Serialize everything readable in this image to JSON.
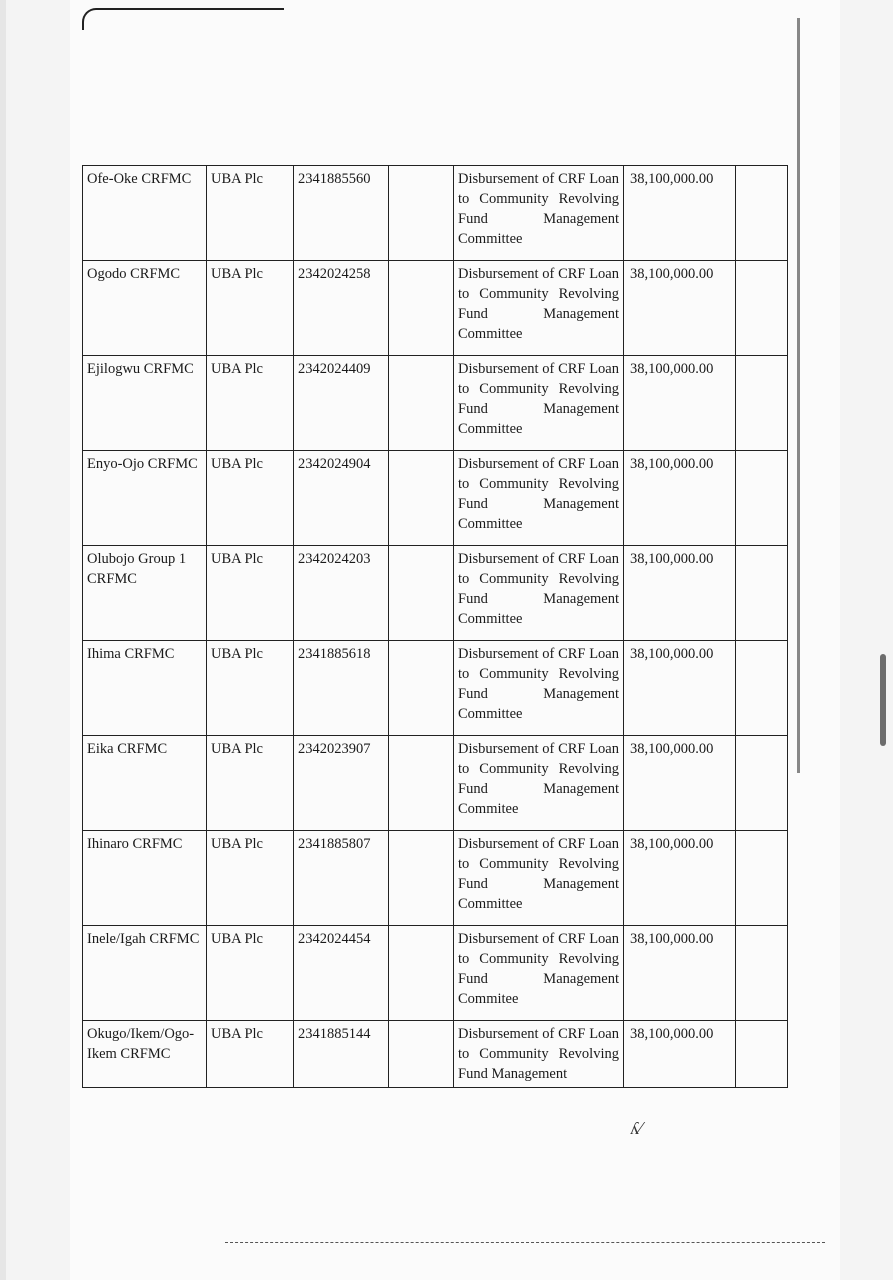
{
  "table": {
    "rows": [
      {
        "name": "Ofe-Oke CRFMC",
        "bank": "UBA Plc",
        "account": "2341885560",
        "desc": [
          "Disbursement of CRF Loan",
          "to Community Revolving",
          "Fund Management",
          "Committee"
        ],
        "amount": "38,100,000.00"
      },
      {
        "name": "Ogodo CRFMC",
        "bank": "UBA Plc",
        "account": "2342024258",
        "desc": [
          "Disbursement of CRF Loan",
          "to Community Revolving",
          "Fund Management",
          "Committee"
        ],
        "amount": "38,100,000.00"
      },
      {
        "name": "Ejilogwu CRFMC",
        "bank": "UBA Plc",
        "account": "2342024409",
        "desc": [
          "Disbursement of CRF Loan",
          "to Community Revolving",
          "Fund Management",
          "Committee"
        ],
        "amount": "38,100,000.00"
      },
      {
        "name": "Enyo-Ojo CRFMC",
        "bank": "UBA Plc",
        "account": "2342024904",
        "desc": [
          "Disbursement of CRF Loan",
          "to Community Revolving",
          "Fund Management",
          "Committee"
        ],
        "amount": "38,100,000.00"
      },
      {
        "name": "Olubojo Group 1 CRFMC",
        "bank": "UBA Plc",
        "account": "2342024203",
        "desc": [
          "Disbursement of CRF Loan",
          "to Community Revolving",
          "Fund Management",
          "Committee"
        ],
        "amount": "38,100,000.00"
      },
      {
        "name": "Ihima CRFMC",
        "bank": "UBA Plc",
        "account": "2341885618",
        "desc": [
          "Disbursement of CRF Loan",
          "to Community Revolving",
          "Fund Management",
          "Committee"
        ],
        "amount": "38,100,000.00"
      },
      {
        "name": "Eika CRFMC",
        "bank": "UBA Plc",
        "account": "2342023907",
        "desc": [
          "Disbursement of CRF Loan",
          "to Community Revolving",
          "Fund Management",
          "Commitee"
        ],
        "amount": "38,100,000.00"
      },
      {
        "name": "Ihinaro CRFMC",
        "bank": "UBA Plc",
        "account": "2341885807",
        "desc": [
          "Disbursement of CRF Loan",
          "to Community Revolving",
          "Fund Management",
          "Committee"
        ],
        "amount": "38,100,000.00"
      },
      {
        "name": "Inele/Igah CRFMC",
        "bank": "UBA Plc",
        "account": "2342024454",
        "desc": [
          "Disbursement of CRF Loan",
          "to Community Revolving",
          "Fund Management",
          "Commitee"
        ],
        "amount": "38,100,000.00"
      },
      {
        "name": "Okugo/Ikem/Ogo-Ikem CRFMC",
        "bank": "UBA Plc",
        "account": "2341885144",
        "desc": [
          "Disbursement of CRF Loan",
          "to Community Revolving",
          "Fund Management"
        ],
        "amount": "38,100,000.00"
      }
    ]
  }
}
